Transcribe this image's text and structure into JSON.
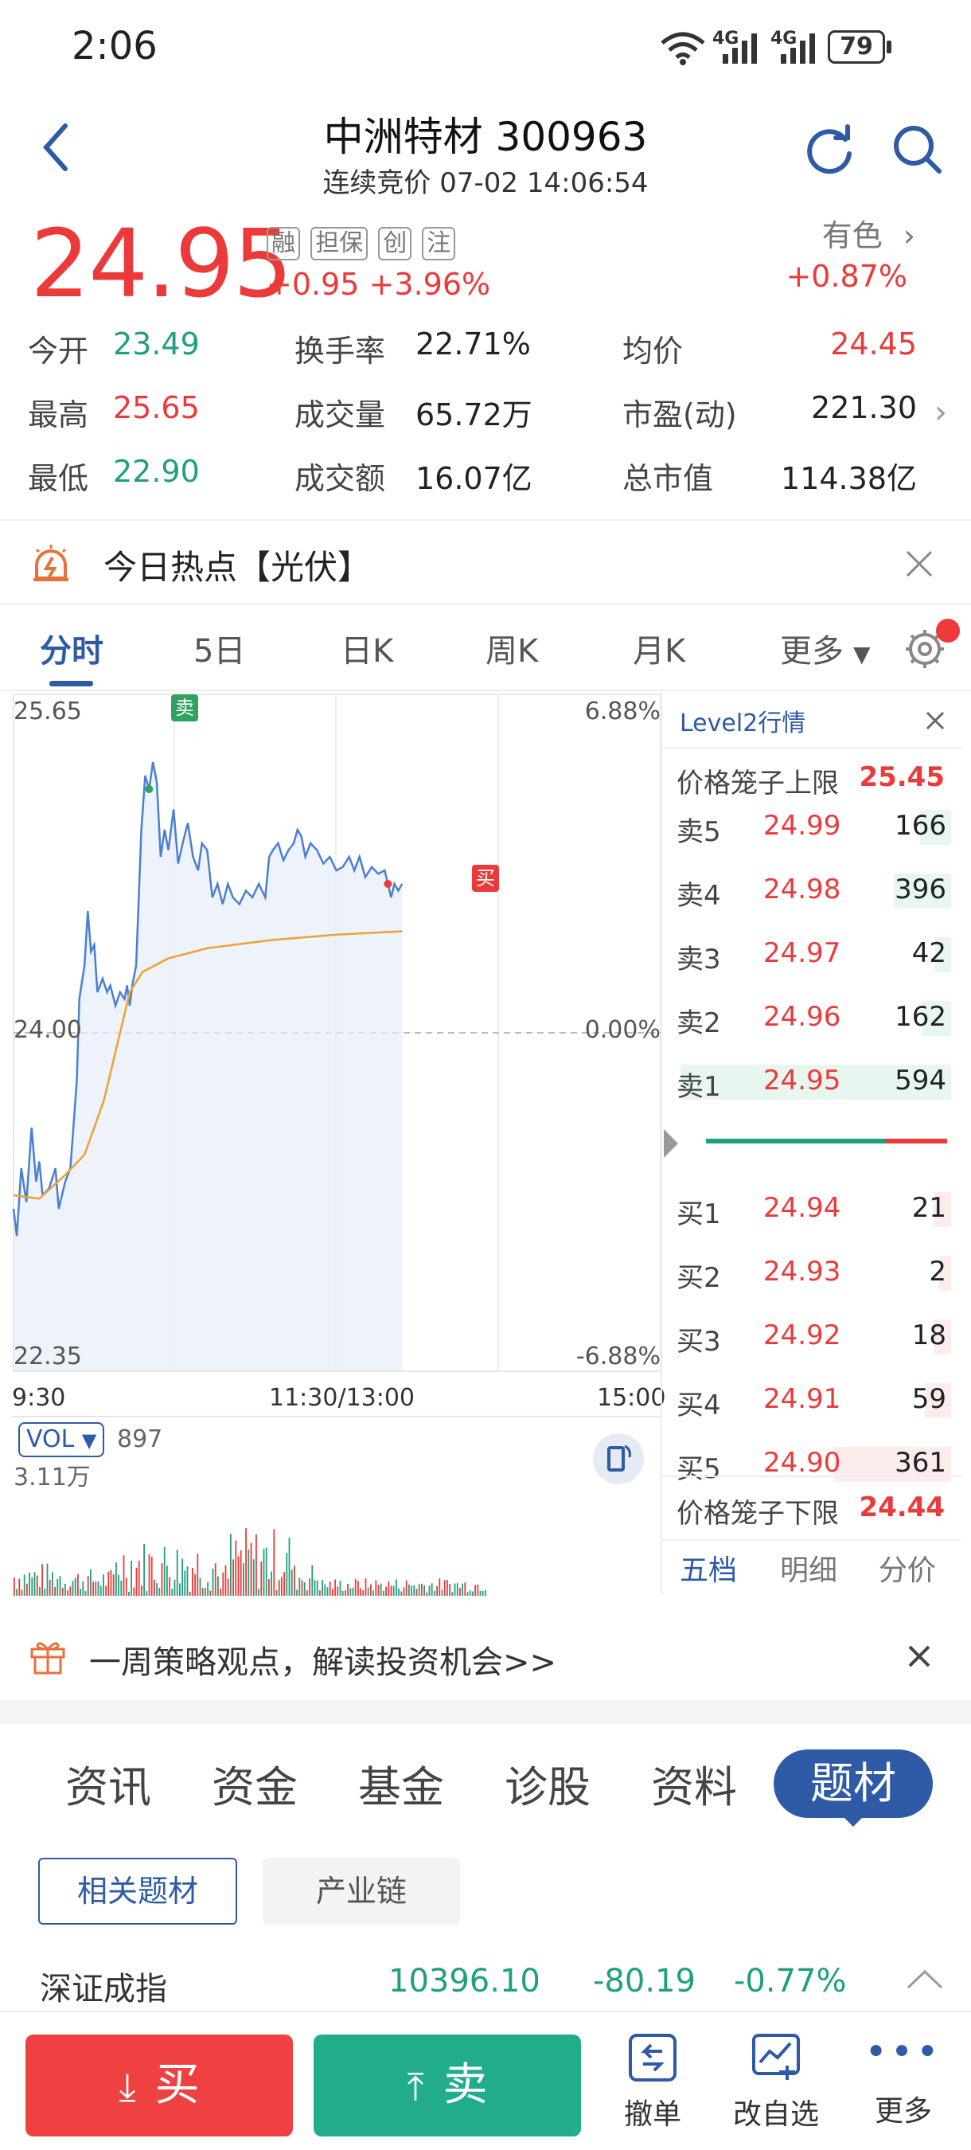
{
  "status": {
    "time": "2:06",
    "net1": "4G",
    "net2": "4G",
    "battery": "79"
  },
  "header": {
    "title": "中洲特材 300963",
    "subtitle": "连续竞价 07-02 14:06:54"
  },
  "price": {
    "last": "24.95",
    "change": "+0.95",
    "change_pct": "+3.96%",
    "tags": [
      "融",
      "担保",
      "创",
      "注"
    ],
    "sector": "有色",
    "sector_pct": "+0.87%"
  },
  "quote": {
    "open_label": "今开",
    "open": "23.49",
    "high_label": "最高",
    "high": "25.65",
    "low_label": "最低",
    "low": "22.90",
    "turnover_label": "换手率",
    "turnover": "22.71%",
    "volume_label": "成交量",
    "volume": "65.72万",
    "amount_label": "成交额",
    "amount": "16.07亿",
    "avg_label": "均价",
    "avg": "24.45",
    "pe_label": "市盈(动)",
    "pe": "221.30",
    "mcap_label": "总市值",
    "mcap": "114.38亿"
  },
  "hot": {
    "text": "今日热点【光伏】"
  },
  "tabs": [
    "分时",
    "5日",
    "日K",
    "周K",
    "月K",
    "更多"
  ],
  "chart": {
    "y_top": "25.65",
    "y_mid": "24.00",
    "y_bot": "22.35",
    "pct_top": "6.88%",
    "pct_mid": "0.00%",
    "pct_bot": "-6.88%",
    "x_start": "9:30",
    "x_mid": "11:30/13:00",
    "x_end": "15:00",
    "sell_marker": "卖",
    "buy_marker": "买",
    "vol_label": "VOL",
    "vol_value": "897",
    "vol_max": "3.11万"
  },
  "orderbook": {
    "title": "Level2行情",
    "upper_label": "价格笼子上限",
    "upper": "25.45",
    "lower_label": "价格笼子下限",
    "lower": "24.44",
    "asks": [
      {
        "label": "卖5",
        "price": "24.99",
        "vol": "166"
      },
      {
        "label": "卖4",
        "price": "24.98",
        "vol": "396"
      },
      {
        "label": "卖3",
        "price": "24.97",
        "vol": "42"
      },
      {
        "label": "卖2",
        "price": "24.96",
        "vol": "162"
      },
      {
        "label": "卖1",
        "price": "24.95",
        "vol": "594"
      }
    ],
    "bids": [
      {
        "label": "买1",
        "price": "24.94",
        "vol": "21"
      },
      {
        "label": "买2",
        "price": "24.93",
        "vol": "2"
      },
      {
        "label": "买3",
        "price": "24.92",
        "vol": "18"
      },
      {
        "label": "买4",
        "price": "24.91",
        "vol": "59"
      },
      {
        "label": "买5",
        "price": "24.90",
        "vol": "361"
      }
    ],
    "tabs": [
      "五档",
      "明细",
      "分价"
    ]
  },
  "banner": {
    "text": "一周策略观点，解读投资机会>>"
  },
  "bottom_tabs": [
    "资讯",
    "资金",
    "基金",
    "诊股",
    "资料",
    "题材"
  ],
  "subtabs": [
    "相关题材",
    "产业链"
  ],
  "index": {
    "name": "深证成指",
    "value": "10396.10",
    "change": "-80.19",
    "pct": "-0.77%"
  },
  "trade": {
    "buy": "买",
    "sell": "卖",
    "cancel": "撤单",
    "watch": "改自选",
    "more": "更多"
  },
  "colors": {
    "up": "#ec3a3a",
    "down": "#1fa07c",
    "accent": "#2e5aa6"
  }
}
